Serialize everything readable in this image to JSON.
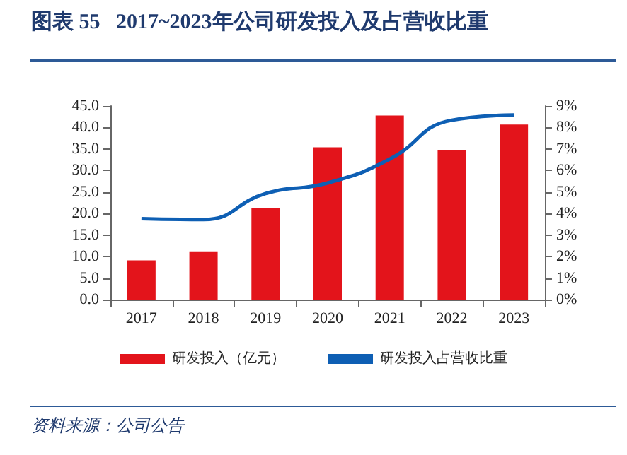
{
  "chart_data": {
    "type": "bar",
    "title": "图表 55   2017~2023年公司研发投入及占营收比重",
    "categories": [
      "2017",
      "2018",
      "2019",
      "2020",
      "2021",
      "2022",
      "2023"
    ],
    "series": [
      {
        "name": "研发投入（亿元）",
        "color": "#e3141b",
        "values": [
          9.1,
          11.2,
          21.3,
          35.4,
          42.8,
          34.8,
          40.7
        ]
      },
      {
        "name": "研发投入占营收比重",
        "type": "line",
        "axis": "y2",
        "color": "#0e5fb4",
        "values": [
          3.76,
          3.72,
          4.93,
          5.42,
          6.53,
          8.34,
          8.58
        ]
      }
    ],
    "ylim": [
      0,
      45
    ],
    "yticks": [
      {
        "value": 0,
        "label": "0.0"
      },
      {
        "value": 5,
        "label": "5.0"
      },
      {
        "value": 10,
        "label": "10.0"
      },
      {
        "value": 15,
        "label": "15.0"
      },
      {
        "value": 20,
        "label": "20.0"
      },
      {
        "value": 25,
        "label": "25.0"
      },
      {
        "value": 30,
        "label": "30.0"
      },
      {
        "value": 35,
        "label": "35.0"
      },
      {
        "value": 40,
        "label": "40.0"
      },
      {
        "value": 45,
        "label": "45.0"
      }
    ],
    "y2lim": [
      0,
      9
    ],
    "y2ticks": [
      {
        "value": 0,
        "label": "0%"
      },
      {
        "value": 1,
        "label": "1%"
      },
      {
        "value": 2,
        "label": "2%"
      },
      {
        "value": 3,
        "label": "3%"
      },
      {
        "value": 4,
        "label": "4%"
      },
      {
        "value": 5,
        "label": "5%"
      },
      {
        "value": 6,
        "label": "6%"
      },
      {
        "value": 7,
        "label": "7%"
      },
      {
        "value": 8,
        "label": "8%"
      },
      {
        "value": 9,
        "label": "9%"
      }
    ],
    "grid": false,
    "legend": "bottom",
    "marker": "none",
    "line_style": "solid",
    "annotations": [
      "资料来源：公司公告"
    ]
  }
}
